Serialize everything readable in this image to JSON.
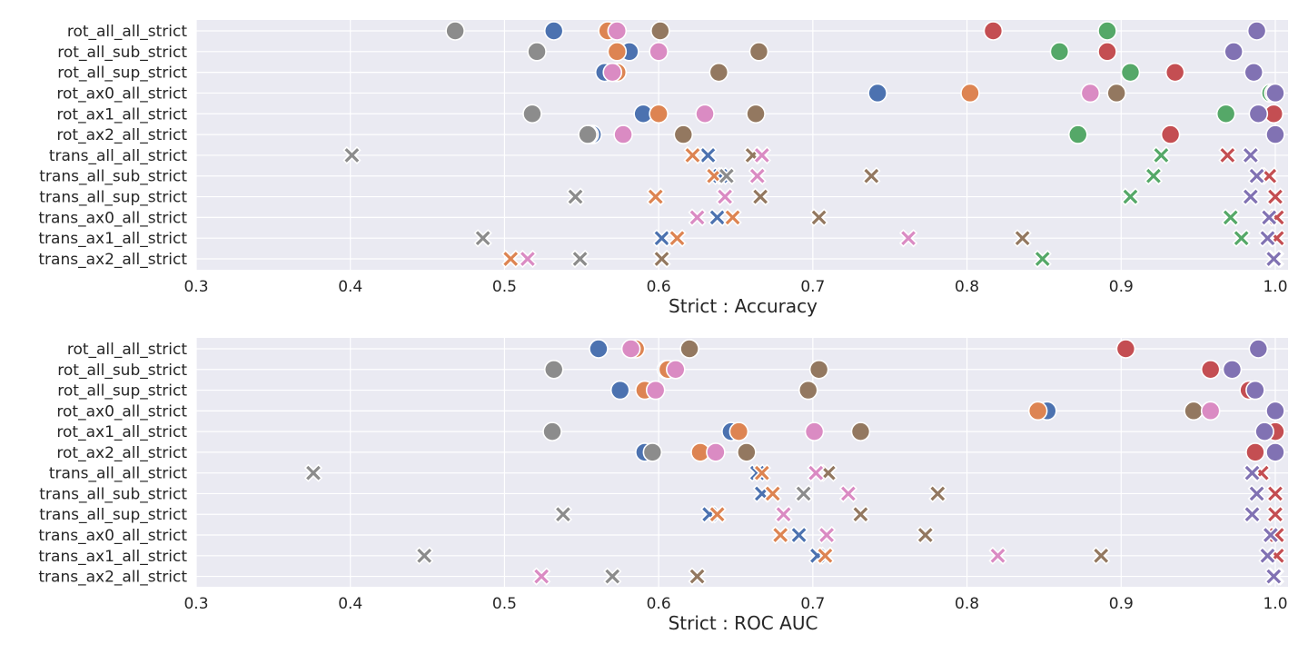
{
  "colors": {
    "rot_all": "#4c72b0",
    "model_2": "#dd8452",
    "model_3": "#55a868",
    "model_4": "#c44e52",
    "model_5": "#8172b3",
    "model_6": "#937860",
    "model_7": "#da8bc3",
    "model_8": "#8c8c8c"
  },
  "chart_data": [
    {
      "type": "scatter",
      "xlabel": "Strict : Accuracy",
      "xlim": [
        0.3,
        1.0
      ],
      "xticks": [
        "0.3",
        "0.4",
        "0.5",
        "0.6",
        "0.7",
        "0.8",
        "0.9",
        "1.0"
      ],
      "categories": [
        "rot_all_all_strict",
        "rot_all_sub_strict",
        "rot_all_sup_strict",
        "rot_ax0_all_strict",
        "rot_ax1_all_strict",
        "rot_ax2_all_strict",
        "trans_all_all_strict",
        "trans_all_sub_strict",
        "trans_all_sup_strict",
        "trans_ax0_all_strict",
        "trans_ax1_all_strict",
        "trans_ax2_all_strict"
      ],
      "series": [
        {
          "color": "#4c72b0",
          "values": [
            0.532,
            0.581,
            0.565,
            0.742,
            0.59,
            0.557,
            0.632,
            0.64,
            0.598,
            0.638,
            0.602,
            0.602
          ]
        },
        {
          "color": "#dd8452",
          "values": [
            0.567,
            0.573,
            0.573,
            0.802,
            0.6,
            0.555,
            0.622,
            0.636,
            0.598,
            0.648,
            0.612,
            0.504
          ]
        },
        {
          "color": "#55a868",
          "values": [
            0.891,
            0.86,
            0.906,
            0.997,
            0.968,
            0.872,
            0.926,
            0.921,
            0.906,
            0.971,
            0.978,
            0.849
          ]
        },
        {
          "color": "#c44e52",
          "values": [
            0.817,
            0.891,
            0.935,
            0.999,
            0.999,
            0.932,
            0.969,
            0.996,
            1.0,
            1.001,
            1.001,
            1.0
          ]
        },
        {
          "color": "#8172b3",
          "values": [
            0.988,
            0.973,
            0.986,
            1.0,
            0.989,
            1.0,
            0.984,
            0.988,
            0.984,
            0.996,
            0.995,
            0.999
          ]
        },
        {
          "color": "#937860",
          "values": [
            0.601,
            0.665,
            0.639,
            0.897,
            0.663,
            0.616,
            0.661,
            0.738,
            0.666,
            0.704,
            0.836,
            0.602
          ]
        },
        {
          "color": "#da8bc3",
          "values": [
            0.573,
            0.6,
            0.57,
            0.88,
            0.63,
            0.577,
            0.667,
            0.664,
            0.643,
            0.625,
            0.762,
            0.515
          ]
        },
        {
          "color": "#8c8c8c",
          "values": [
            0.468,
            0.521,
            null,
            null,
            0.518,
            0.554,
            0.401,
            0.644,
            0.546,
            null,
            0.486,
            0.549
          ]
        }
      ]
    },
    {
      "type": "scatter",
      "xlabel": "Strict : ROC AUC",
      "xlim": [
        0.3,
        1.0
      ],
      "xticks": [
        "0.3",
        "0.4",
        "0.5",
        "0.6",
        "0.7",
        "0.8",
        "0.9",
        "1.0"
      ],
      "categories": [
        "rot_all_all_strict",
        "rot_all_sub_strict",
        "rot_all_sup_strict",
        "rot_ax0_all_strict",
        "rot_ax1_all_strict",
        "rot_ax2_all_strict",
        "trans_all_all_strict",
        "trans_all_sub_strict",
        "trans_all_sup_strict",
        "trans_ax0_all_strict",
        "trans_ax1_all_strict",
        "trans_ax2_all_strict"
      ],
      "series": [
        {
          "color": "#4c72b0",
          "values": [
            0.561,
            0.605,
            0.575,
            0.852,
            0.647,
            0.591,
            0.664,
            0.667,
            0.633,
            0.691,
            0.703,
            null
          ]
        },
        {
          "color": "#dd8452",
          "values": [
            0.585,
            0.606,
            0.591,
            0.846,
            0.652,
            0.627,
            0.667,
            0.674,
            0.638,
            0.679,
            0.708,
            null
          ]
        },
        {
          "color": "#55a868",
          "values": [
            null,
            null,
            null,
            null,
            null,
            null,
            null,
            null,
            null,
            null,
            null,
            null
          ]
        },
        {
          "color": "#c44e52",
          "values": [
            0.903,
            0.958,
            0.983,
            null,
            1.0,
            0.987,
            0.991,
            1.0,
            1.0,
            1.001,
            1.001,
            1.0
          ]
        },
        {
          "color": "#8172b3",
          "values": [
            0.989,
            0.972,
            0.987,
            1.0,
            0.993,
            1.0,
            0.985,
            0.988,
            0.985,
            0.997,
            0.995,
            0.999
          ]
        },
        {
          "color": "#937860",
          "values": [
            0.62,
            0.704,
            0.697,
            0.947,
            0.731,
            0.657,
            0.71,
            0.781,
            0.731,
            0.773,
            0.887,
            0.625
          ]
        },
        {
          "color": "#da8bc3",
          "values": [
            0.582,
            0.611,
            0.598,
            0.958,
            0.701,
            0.637,
            0.702,
            0.723,
            0.681,
            0.709,
            0.82,
            0.524
          ]
        },
        {
          "color": "#8c8c8c",
          "values": [
            null,
            0.532,
            null,
            null,
            0.531,
            0.596,
            0.376,
            0.694,
            0.538,
            null,
            0.448,
            0.57
          ]
        }
      ]
    }
  ]
}
